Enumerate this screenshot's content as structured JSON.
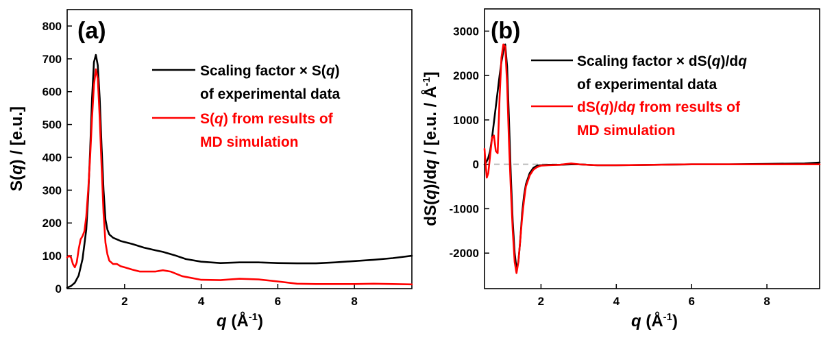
{
  "chart_data": [
    {
      "type": "line",
      "panel_label": "(a)",
      "xlabel_main": "q",
      "xlabel_rest": " (Å",
      "xlabel_exp": "-1",
      "xlabel_close": ")",
      "ylabel_pre": "S(",
      "ylabel_var": "q",
      "ylabel_post": ") / [e.u.]",
      "xlim": [
        0.5,
        9.5
      ],
      "ylim": [
        0,
        850
      ],
      "xticks": [
        2,
        4,
        6,
        8
      ],
      "yticks": [
        0,
        100,
        200,
        300,
        400,
        500,
        600,
        700,
        800
      ],
      "legend_placement": "top-right",
      "series": [
        {
          "legend_line1_pre": "Scaling factor × S(",
          "legend_line1_var": "q",
          "legend_line1_post": ")",
          "legend_line2": "of experimental data",
          "color": "#000000",
          "x": [
            0.5,
            0.6,
            0.7,
            0.8,
            0.9,
            1.0,
            1.05,
            1.1,
            1.15,
            1.2,
            1.25,
            1.3,
            1.35,
            1.4,
            1.45,
            1.5,
            1.55,
            1.6,
            1.7,
            1.8,
            1.9,
            2.0,
            2.2,
            2.5,
            2.8,
            3.0,
            3.3,
            3.6,
            4.0,
            4.5,
            5.0,
            5.5,
            6.0,
            6.5,
            7.0,
            7.5,
            8.0,
            8.5,
            9.0,
            9.5
          ],
          "y": [
            3,
            8,
            18,
            40,
            90,
            180,
            280,
            420,
            580,
            690,
            712,
            680,
            580,
            430,
            300,
            210,
            180,
            165,
            155,
            150,
            145,
            142,
            136,
            125,
            117,
            112,
            102,
            90,
            82,
            78,
            80,
            80,
            78,
            77,
            77,
            80,
            84,
            88,
            93,
            100
          ]
        },
        {
          "legend_line1_pre": "S(",
          "legend_line1_var": "q",
          "legend_line1_post": ") from results of",
          "legend_line2": "MD simulation",
          "color": "#ff0000",
          "x": [
            0.5,
            0.55,
            0.6,
            0.65,
            0.7,
            0.75,
            0.8,
            0.85,
            0.9,
            0.95,
            1.0,
            1.05,
            1.1,
            1.15,
            1.2,
            1.25,
            1.3,
            1.35,
            1.4,
            1.45,
            1.5,
            1.55,
            1.6,
            1.7,
            1.8,
            1.9,
            2.0,
            2.2,
            2.4,
            2.6,
            2.8,
            3.0,
            3.2,
            3.5,
            4.0,
            4.5,
            5.0,
            5.5,
            6.0,
            6.5,
            7.0,
            7.5,
            8.0,
            8.5,
            9.0,
            9.5
          ],
          "y": [
            95,
            100,
            95,
            75,
            65,
            80,
            120,
            150,
            160,
            175,
            220,
            300,
            400,
            520,
            620,
            668,
            640,
            520,
            370,
            230,
            140,
            105,
            85,
            75,
            75,
            68,
            65,
            58,
            52,
            52,
            52,
            56,
            52,
            38,
            27,
            26,
            30,
            28,
            22,
            15,
            14,
            14,
            14,
            15,
            14,
            13
          ]
        }
      ]
    },
    {
      "type": "line",
      "panel_label": "(b)",
      "xlabel_main": "q",
      "xlabel_rest": " (Å",
      "xlabel_exp": "-1",
      "xlabel_close": ")",
      "ylabel_p1": "dS(",
      "ylabel_v1": "q",
      "ylabel_p2": ")/d",
      "ylabel_v2": "q",
      "ylabel_p3": " / [e.u. / Å",
      "ylabel_exp": "-1",
      "ylabel_p4": "]",
      "xlim": [
        0.5,
        9.4
      ],
      "ylim": [
        -2800,
        3500
      ],
      "xticks": [
        2,
        4,
        6,
        8
      ],
      "yticks": [
        -2000,
        -1000,
        0,
        1000,
        2000,
        3000
      ],
      "zero_line": {
        "y": 0,
        "x_end": 3.2,
        "color": "#bbbbbb",
        "style": "dashed"
      },
      "legend_placement": "top-right",
      "series": [
        {
          "legend_line1_pre": "Scaling factor × dS(",
          "legend_line1_var": "q",
          "legend_line1_mid": ")/d",
          "legend_line1_var2": "q",
          "legend_line2": "of experimental data",
          "color": "#000000",
          "x": [
            0.5,
            0.55,
            0.6,
            0.65,
            0.7,
            0.8,
            0.9,
            0.95,
            1.0,
            1.05,
            1.1,
            1.15,
            1.2,
            1.25,
            1.3,
            1.35,
            1.4,
            1.45,
            1.5,
            1.55,
            1.6,
            1.7,
            1.8,
            1.9,
            2.0,
            2.2,
            2.5,
            2.8,
            3.0,
            3.5,
            4.0,
            5.0,
            6.0,
            7.0,
            8.0,
            9.0,
            9.4
          ],
          "y": [
            0,
            50,
            150,
            300,
            600,
            1300,
            2000,
            2300,
            2550,
            2700,
            2200,
            1000,
            -300,
            -1300,
            -2000,
            -2350,
            -2200,
            -1700,
            -1100,
            -700,
            -450,
            -200,
            -80,
            -30,
            -20,
            -10,
            -10,
            0,
            0,
            -20,
            -20,
            -10,
            0,
            0,
            10,
            20,
            40
          ]
        },
        {
          "legend_line1_pre": "dS(",
          "legend_line1_var": "q",
          "legend_line1_mid": ")/d",
          "legend_line1_var2": "q",
          "legend_line1_post": " from results of",
          "legend_line2": "MD simulation",
          "color": "#ff0000",
          "x": [
            0.5,
            0.52,
            0.56,
            0.6,
            0.65,
            0.7,
            0.75,
            0.8,
            0.85,
            0.9,
            0.95,
            1.0,
            1.05,
            1.1,
            1.15,
            1.2,
            1.25,
            1.3,
            1.35,
            1.4,
            1.45,
            1.5,
            1.55,
            1.6,
            1.7,
            1.8,
            1.9,
            2.0,
            2.2,
            2.5,
            2.8,
            3.0,
            3.5,
            4.0,
            5.0,
            6.0,
            7.0,
            8.0,
            9.0,
            9.4
          ],
          "y": [
            350,
            100,
            -300,
            -200,
            200,
            600,
            650,
            300,
            250,
            1500,
            2400,
            2700,
            2650,
            1800,
            500,
            -600,
            -1500,
            -2200,
            -2450,
            -2200,
            -1700,
            -1200,
            -800,
            -500,
            -250,
            -120,
            -60,
            -30,
            -20,
            -10,
            20,
            0,
            -20,
            -20,
            -10,
            0,
            0,
            0,
            0,
            0
          ]
        }
      ]
    }
  ]
}
